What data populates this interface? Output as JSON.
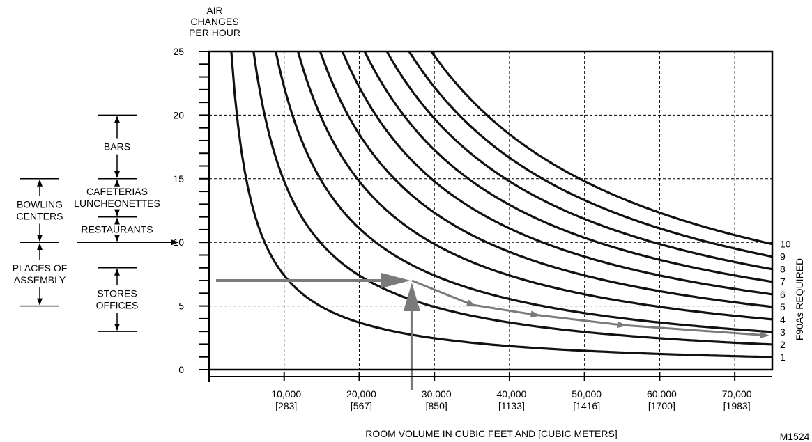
{
  "chart_data": {
    "type": "line",
    "title": "",
    "ylabel_lines": [
      "AIR",
      "CHANGES",
      "PER HOUR"
    ],
    "xlabel": "ROOM VOLUME IN CUBIC FEET AND [CUBIC METERS]",
    "right_label": "F90As REQUIRED",
    "figure_code": "M1524",
    "xlim": [
      0,
      75000
    ],
    "ylim": [
      0,
      25
    ],
    "grid": true,
    "y_ticks": [
      "0",
      "5",
      "10",
      "15",
      "20",
      "25"
    ],
    "x_ticks": [
      {
        "value": 10000,
        "cf": "10,000",
        "m3": "[283]"
      },
      {
        "value": 20000,
        "cf": "20,000",
        "m3": "[567]"
      },
      {
        "value": 30000,
        "cf": "30,000",
        "m3": "[850]"
      },
      {
        "value": 40000,
        "cf": "40,000",
        "m3": "[1133]"
      },
      {
        "value": 50000,
        "cf": "50,000",
        "m3": "[1416]"
      },
      {
        "value": 60000,
        "cf": "60,000",
        "m3": "[1700]"
      },
      {
        "value": 70000,
        "cf": "70,000",
        "m3": "[1983]"
      }
    ],
    "curve_constant_per_unit": 74000,
    "series": [
      {
        "name": "1"
      },
      {
        "name": "2"
      },
      {
        "name": "3"
      },
      {
        "name": "4"
      },
      {
        "name": "5"
      },
      {
        "name": "6"
      },
      {
        "name": "7"
      },
      {
        "name": "8"
      },
      {
        "name": "9"
      },
      {
        "name": "10"
      }
    ],
    "example_path": {
      "from_y": 7,
      "selection_x": 27000,
      "hint_points": [
        [
          35000,
          5.1
        ],
        [
          43500,
          4.3
        ],
        [
          55000,
          3.5
        ],
        [
          74000,
          2.7
        ]
      ]
    },
    "ranges_left": [
      {
        "label_lines": [
          "BOWLING",
          "CENTERS"
        ],
        "from": 10,
        "to": 15
      },
      {
        "label_lines": [
          "PLACES OF",
          "ASSEMBLY"
        ],
        "from": 5,
        "to": 10
      }
    ],
    "ranges_right": [
      {
        "label_lines": [
          "BARS"
        ],
        "from": 15,
        "to": 20
      },
      {
        "label_lines": [
          "CAFETERIAS",
          "LUNCHEONETTES"
        ],
        "from": 12,
        "to": 15
      },
      {
        "label_lines": [
          "RESTAURANTS"
        ],
        "from": 10,
        "to": 12
      },
      {
        "label_lines": [
          "STORES",
          "OFFICES"
        ],
        "from": 3,
        "to": 8
      }
    ]
  }
}
